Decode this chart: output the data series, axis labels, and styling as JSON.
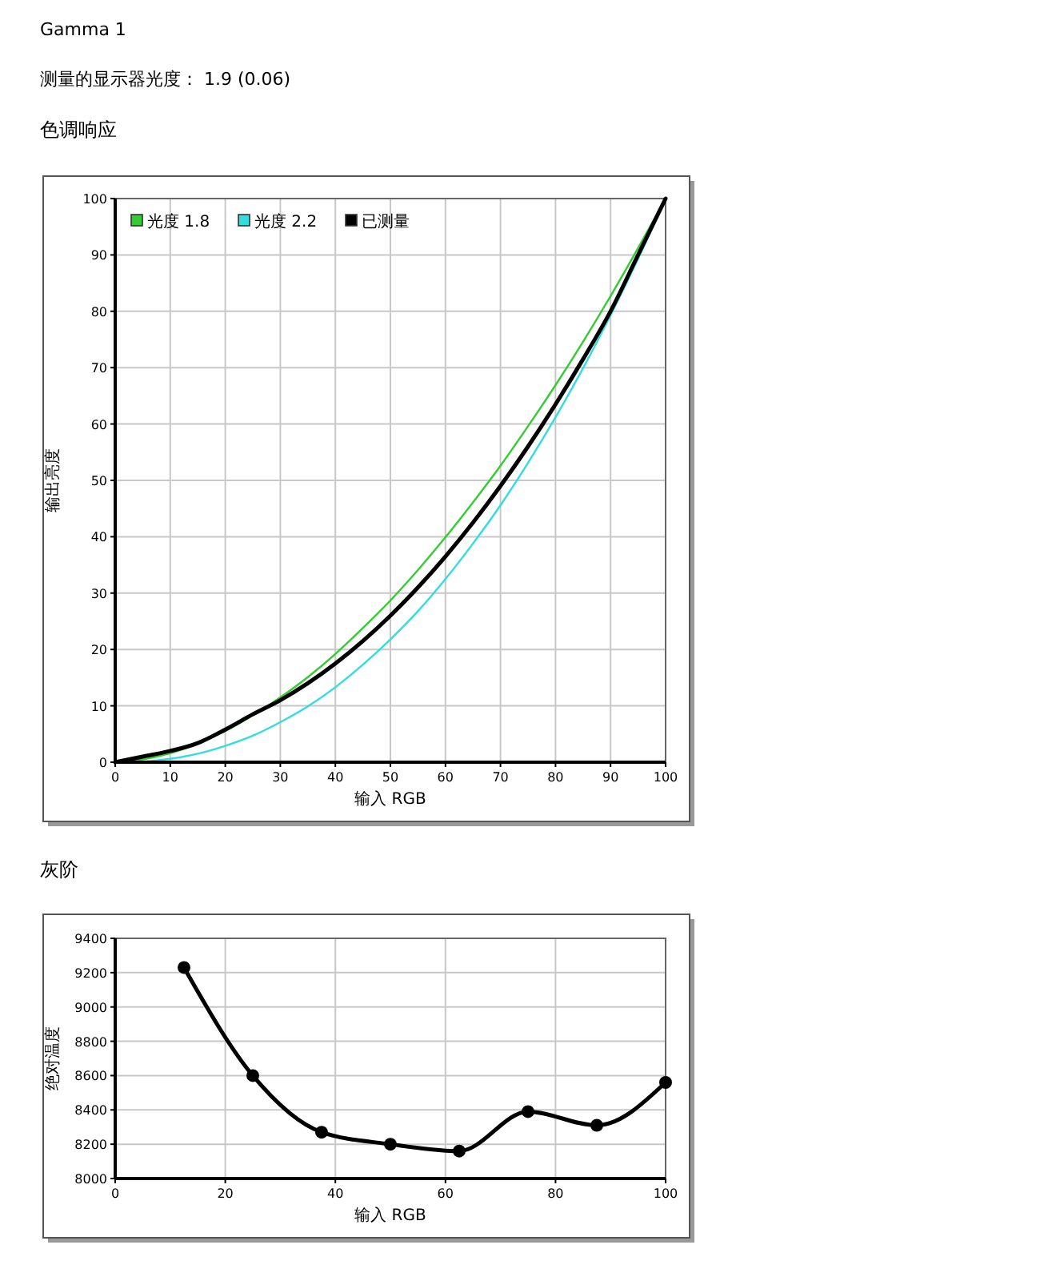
{
  "chart_data": [
    {
      "type": "line",
      "title": "色调响应",
      "annotations": [
        "Gamma 1",
        "测量的显示器光度： 1.9 (0.06)"
      ],
      "xlabel": "输入 RGB",
      "ylabel": "输出亮度",
      "x": [
        0,
        5,
        10,
        15,
        20,
        25,
        30,
        35,
        40,
        45,
        50,
        55,
        60,
        65,
        70,
        75,
        80,
        85,
        90,
        95,
        100
      ],
      "series": [
        {
          "name": "光度 1.8",
          "color": "#33cc33",
          "values": [
            0,
            0.5,
            1.6,
            3.3,
            5.5,
            8.3,
            11.5,
            15.1,
            19.2,
            23.8,
            28.7,
            34.1,
            39.9,
            46.1,
            52.6,
            59.6,
            66.9,
            74.6,
            82.7,
            91.2,
            100
          ]
        },
        {
          "name": "光度 2.2",
          "color": "#33dddd",
          "values": [
            0,
            0.1,
            0.6,
            1.5,
            2.9,
            4.7,
            7.1,
            9.9,
            13.3,
            17.3,
            21.8,
            26.8,
            32.5,
            38.8,
            45.6,
            53.1,
            61.2,
            69.9,
            79.3,
            89.3,
            100
          ]
        },
        {
          "name": "已测量",
          "color": "#000000",
          "values": [
            0,
            1.0,
            2.0,
            3.4,
            5.8,
            8.5,
            11,
            14,
            17.5,
            21.5,
            26,
            31,
            36.5,
            42.5,
            49,
            56,
            63.5,
            71.5,
            80,
            90,
            100
          ]
        }
      ],
      "xlim": [
        0,
        100
      ],
      "xticks": [
        0,
        10,
        20,
        30,
        40,
        50,
        60,
        70,
        80,
        90,
        100
      ],
      "ylim": [
        0,
        100
      ],
      "yticks": [
        0,
        10,
        20,
        30,
        40,
        50,
        60,
        70,
        80,
        90,
        100
      ],
      "grid": true,
      "legend": "top left",
      "marker": "none"
    },
    {
      "type": "line",
      "title": "灰阶",
      "xlabel": "输入 RGB",
      "ylabel": "绝对温度",
      "x": [
        12.5,
        25,
        37.5,
        50,
        62.5,
        75,
        87.5,
        100
      ],
      "series": [
        {
          "color": "#000000",
          "values": [
            9230,
            8600,
            8270,
            8200,
            8160,
            8390,
            8310,
            8560
          ]
        }
      ],
      "xlim": [
        0,
        100
      ],
      "xticks": [
        0,
        20,
        40,
        60,
        80,
        100
      ],
      "ylim": [
        8000,
        9400
      ],
      "yticks": [
        8000,
        8200,
        8400,
        8600,
        8800,
        9000,
        9200,
        9400
      ],
      "grid": true,
      "legend": false,
      "marker": "circle"
    }
  ]
}
